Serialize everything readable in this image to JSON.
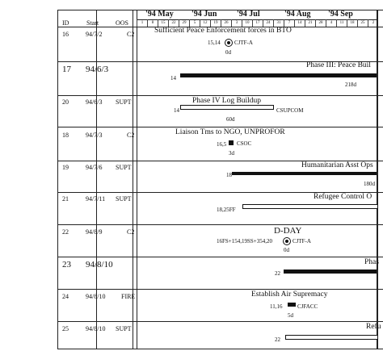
{
  "header": {
    "id": "ID",
    "start": "Start",
    "oos": "OOS"
  },
  "months": [
    "'94 May",
    "'94 Jun",
    "'94 Jul",
    "'94 Aug",
    "'94 Sep"
  ],
  "weeks": [
    "1",
    "8",
    "15",
    "22",
    "29",
    "5",
    "12",
    "19",
    "26",
    "3",
    "10",
    "17",
    "24",
    "31",
    "7",
    "14",
    "21",
    "28",
    "4",
    "11",
    "18",
    "25",
    "2"
  ],
  "rows": [
    {
      "id": "16",
      "start": "94/7/2",
      "oos": "C2",
      "label": "Sufficient Peace Enforcement forces in BTO",
      "pred": "15,14",
      "resource": "CJTF-A",
      "duration": "0d"
    },
    {
      "id": "17",
      "start": "94/6/3",
      "oos": "",
      "label": "Phase III:  Peace Buil",
      "pred": "14",
      "resource": "",
      "duration": "218d"
    },
    {
      "id": "20",
      "start": "94/6/3",
      "oos": "SUPT",
      "label": "Phase IV Log Buildup",
      "pred": "14",
      "resource": "CSUPCOM",
      "duration": "60d"
    },
    {
      "id": "18",
      "start": "94/7/3",
      "oos": "C2",
      "label": "Liaison Tms to NGO, UNPROFOR",
      "pred": "16,5",
      "resource": "CSOC",
      "duration": "3d"
    },
    {
      "id": "19",
      "start": "94/7/6",
      "oos": "SUPT",
      "label": "Humanitarian Asst Ops",
      "pred": "18",
      "resource": "",
      "duration": "180d"
    },
    {
      "id": "21",
      "start": "94/7/11",
      "oos": "SUPT",
      "label": "Refugee Control O",
      "pred": "18,25FF",
      "resource": "",
      "duration": ""
    },
    {
      "id": "22",
      "start": "94/8/9",
      "oos": "C2",
      "label": "D-DAY",
      "pred": "16FS+154,19SS+354,20",
      "resource": "CJTF-A",
      "duration": "0d"
    },
    {
      "id": "23",
      "start": "94/8/10",
      "oos": "",
      "label": "Phas",
      "pred": "22",
      "resource": "",
      "duration": ""
    },
    {
      "id": "24",
      "start": "94/8/10",
      "oos": "FIRE",
      "label": "Establish Air Supremacy",
      "pred": "11,16",
      "resource": "CJFACC",
      "duration": "5d"
    },
    {
      "id": "25",
      "start": "94/8/10",
      "oos": "SUPT",
      "label": "Refu",
      "pred": "22",
      "resource": "",
      "duration": ""
    }
  ]
}
